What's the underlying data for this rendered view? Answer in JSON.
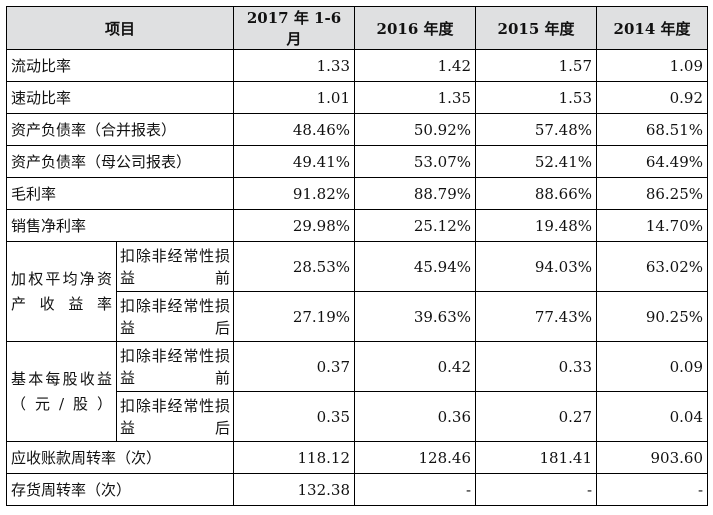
{
  "header": {
    "item": "项目",
    "periods": [
      "2017 年 1-6 月",
      "2016 年度",
      "2015 年度",
      "2014 年度"
    ]
  },
  "rows": [
    {
      "label": "流动比率",
      "values": [
        "1.33",
        "1.42",
        "1.57",
        "1.09"
      ]
    },
    {
      "label": "速动比率",
      "values": [
        "1.01",
        "1.35",
        "1.53",
        "0.92"
      ]
    },
    {
      "label": "资产负债率（合并报表）",
      "values": [
        "48.46%",
        "50.92%",
        "57.48%",
        "68.51%"
      ]
    },
    {
      "label": "资产负债率（母公司报表）",
      "values": [
        "49.41%",
        "53.07%",
        "52.41%",
        "64.49%"
      ]
    },
    {
      "label": "毛利率",
      "values": [
        "91.82%",
        "88.79%",
        "88.66%",
        "86.25%"
      ]
    },
    {
      "label": "销售净利率",
      "values": [
        "29.98%",
        "25.12%",
        "19.48%",
        "14.70%"
      ]
    }
  ],
  "roe": {
    "label": "加权平均净资产收益率",
    "before": {
      "label": "扣除非经常性损益前",
      "values": [
        "28.53%",
        "45.94%",
        "94.03%",
        "63.02%"
      ]
    },
    "after": {
      "label": "扣除非经常性损益后",
      "values": [
        "27.19%",
        "39.63%",
        "77.43%",
        "90.25%"
      ]
    }
  },
  "eps": {
    "label": "基本每股收益（元/股）",
    "before": {
      "label": "扣除非经常性损益前",
      "values": [
        "0.37",
        "0.42",
        "0.33",
        "0.09"
      ]
    },
    "after": {
      "label": "扣除非经常性损益后",
      "values": [
        "0.35",
        "0.36",
        "0.27",
        "0.04"
      ]
    }
  },
  "tail_rows": [
    {
      "label": "应收账款周转率（次）",
      "values": [
        "118.12",
        "128.46",
        "181.41",
        "903.60"
      ]
    },
    {
      "label": "存货周转率（次）",
      "values": [
        "132.38",
        "-",
        "-",
        "-"
      ]
    }
  ]
}
